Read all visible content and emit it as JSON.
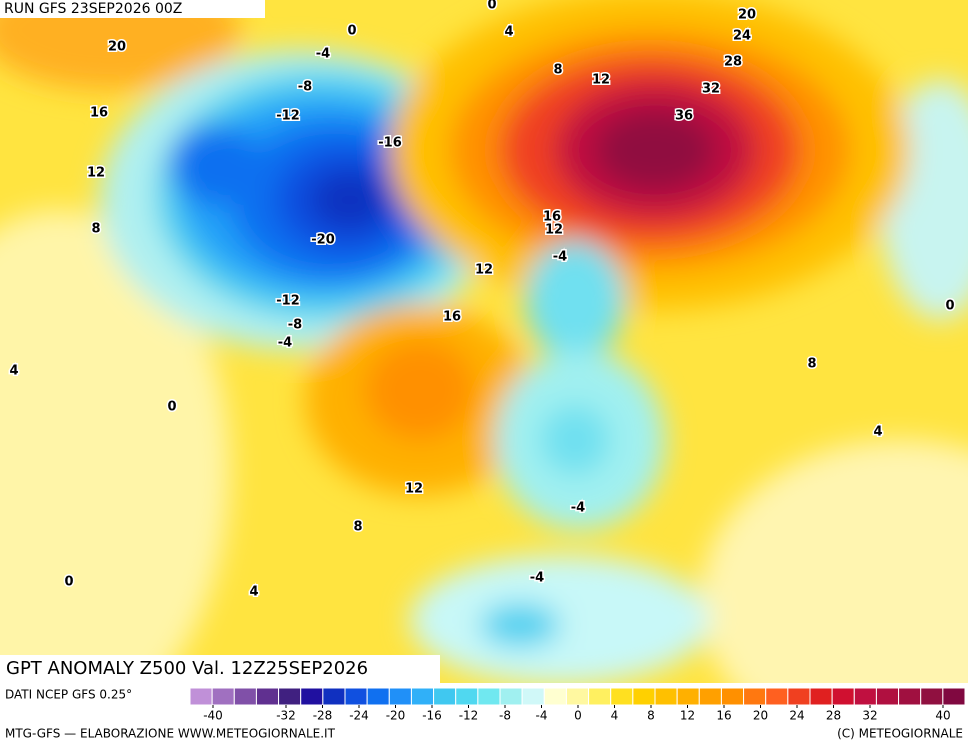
{
  "header": {
    "run": "RUN GFS 23SEP2026 00Z"
  },
  "title": "GPT ANOMALY Z500 Val. 12Z25SEP2026",
  "source": "DATI NCEP GFS 0.25°",
  "credit_left": "MTG-GFS — ELABORAZIONE WWW.METEOGIORNALE.IT",
  "credit_right": "(C) METEOGIORNALE",
  "colorbar": {
    "ticks": [
      -40,
      -32,
      -28,
      -24,
      -20,
      -16,
      -12,
      -8,
      -4,
      0,
      4,
      8,
      12,
      16,
      20,
      24,
      28,
      32,
      40
    ],
    "colors": [
      "#c090d8",
      "#a070c0",
      "#8050a8",
      "#603090",
      "#402080",
      "#2010a0",
      "#1030c0",
      "#1050e0",
      "#1070f0",
      "#2090f8",
      "#30b0f8",
      "#40c8f0",
      "#50d8f0",
      "#70e8f0",
      "#a0f0f0",
      "#d0f8f8",
      "#ffffd0",
      "#fff8a0",
      "#fff060",
      "#ffe020",
      "#ffd000",
      "#ffc000",
      "#ffb000",
      "#ffa000",
      "#ff9000",
      "#ff7810",
      "#ff6020",
      "#f04020",
      "#e02020",
      "#d01030",
      "#c01040",
      "#b01040",
      "#a01040",
      "#901040",
      "#800840"
    ]
  },
  "contour_labels": [
    20,
    16,
    12,
    8,
    4,
    0,
    0,
    4,
    8,
    12,
    16,
    12,
    -4,
    -8,
    -12,
    -16,
    -20,
    -12,
    -8,
    -4,
    0,
    0,
    4,
    8,
    12,
    20,
    24,
    28,
    32,
    36,
    16,
    12,
    -4,
    -4,
    -4,
    8,
    4,
    0
  ]
}
